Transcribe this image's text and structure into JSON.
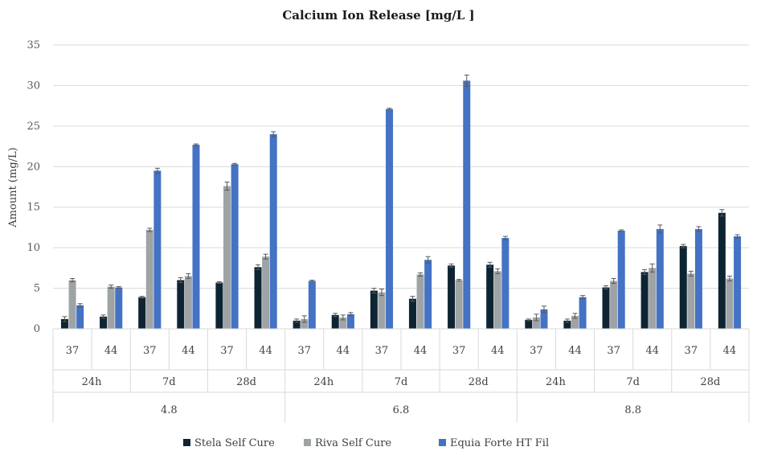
{
  "chart_data": {
    "type": "bar",
    "title": "Calcium Ion Release [mg/L ]",
    "ylabel": "Amount (mg/L)",
    "xlabel": "",
    "ylim": [
      0,
      35
    ],
    "yticks": [
      "0",
      "5",
      "10",
      "15",
      "20",
      "25",
      "30",
      "35"
    ],
    "grid": true,
    "legend_position": "bottom",
    "category_levels": {
      "ph": [
        "4.8",
        "6.8",
        "8.8"
      ],
      "time": [
        "24h",
        "7d",
        "28d"
      ],
      "temperature": [
        "37",
        "44"
      ]
    },
    "categories": [
      "4.8 | 24h | 37",
      "4.8 | 24h | 44",
      "4.8 | 7d | 37",
      "4.8 | 7d | 44",
      "4.8 | 28d | 37",
      "4.8 | 28d | 44",
      "6.8 | 24h | 37",
      "6.8 | 24h | 44",
      "6.8 | 7d | 37",
      "6.8 | 7d | 44",
      "6.8 | 28d | 37",
      "6.8 | 28d | 44",
      "8.8 | 24h | 37",
      "8.8 | 24h | 44",
      "8.8 | 7d | 37",
      "8.8 | 7d | 44",
      "8.8 | 28d | 37",
      "8.8 | 28d | 44"
    ],
    "series": [
      {
        "name": "Stela Self Cure",
        "color": "#0e2433",
        "values": [
          1.2,
          1.5,
          3.9,
          6.0,
          5.7,
          7.6,
          1.0,
          1.7,
          4.7,
          3.7,
          7.8,
          7.9,
          1.1,
          1.0,
          5.1,
          7.0,
          10.2,
          14.3
        ],
        "errors": [
          0.3,
          0.2,
          0.1,
          0.3,
          0.1,
          0.3,
          0.2,
          0.2,
          0.3,
          0.3,
          0.2,
          0.3,
          0.1,
          0.2,
          0.2,
          0.3,
          0.2,
          0.4
        ]
      },
      {
        "name": "Riva Self Cure",
        "color": "#9ea3a6",
        "values": [
          6.0,
          5.2,
          12.2,
          6.5,
          17.6,
          8.9,
          1.2,
          1.4,
          4.5,
          6.7,
          6.0,
          7.1,
          1.4,
          1.6,
          5.9,
          7.5,
          6.8,
          6.2
        ],
        "errors": [
          0.2,
          0.2,
          0.2,
          0.3,
          0.5,
          0.3,
          0.4,
          0.3,
          0.4,
          0.2,
          0.1,
          0.3,
          0.4,
          0.3,
          0.3,
          0.5,
          0.3,
          0.3
        ]
      },
      {
        "name": "Equia Forte HT Fil",
        "color": "#4472c4",
        "values": [
          2.9,
          5.1,
          19.5,
          22.7,
          20.3,
          24.0,
          5.9,
          1.8,
          27.1,
          8.5,
          30.6,
          11.2,
          2.4,
          3.9,
          12.1,
          12.3,
          12.3,
          11.4
        ],
        "errors": [
          0.2,
          0.1,
          0.3,
          0.1,
          0.1,
          0.3,
          0.1,
          0.2,
          0.1,
          0.4,
          0.7,
          0.2,
          0.4,
          0.2,
          0.1,
          0.5,
          0.3,
          0.2
        ]
      }
    ]
  }
}
